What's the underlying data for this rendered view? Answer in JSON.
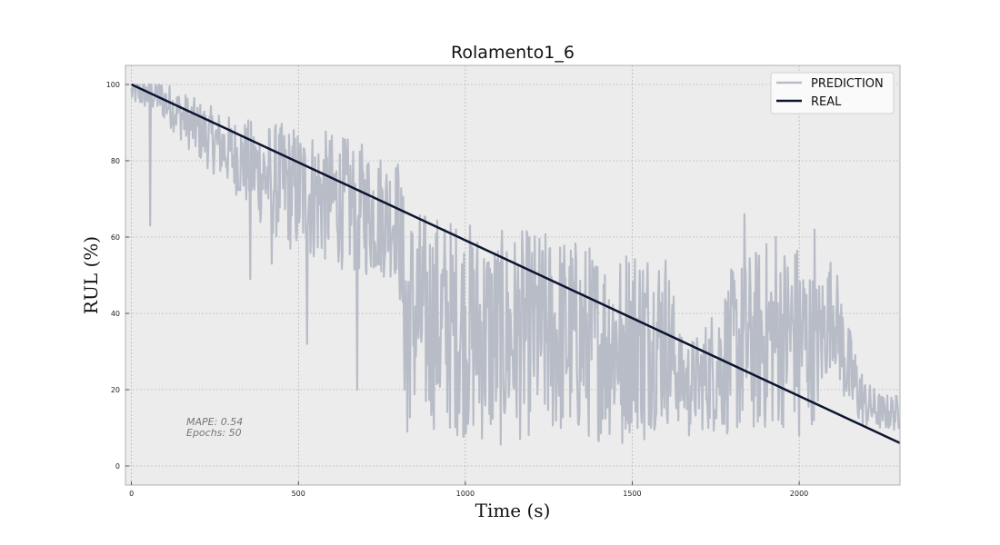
{
  "chart_data": {
    "type": "line",
    "title": "Rolamento1_6",
    "xlabel": "Time (s)",
    "ylabel": "RUL (%)",
    "xlim": [
      -18,
      2302
    ],
    "ylim": [
      -5,
      105
    ],
    "xticks": [
      0,
      500,
      1000,
      1500,
      2000
    ],
    "yticks": [
      0,
      20,
      40,
      60,
      80,
      100
    ],
    "grid": true,
    "legend_position": "top-right",
    "colors": {
      "background": "#ececec",
      "prediction": "#b7bcc7",
      "real": "#0c1530",
      "grid": "#a8a8a8"
    },
    "series": [
      {
        "name": "PREDICTION",
        "style": "noisy",
        "trend_x": [
          0,
          80,
          200,
          300,
          400,
          500,
          600,
          700,
          800,
          820,
          1000,
          1100,
          1200,
          1300,
          1400,
          1500,
          1600,
          1650,
          1700,
          1800,
          1900,
          2000,
          2050,
          2100,
          2150,
          2200,
          2250,
          2300
        ],
        "trend_y": [
          98,
          97,
          88,
          82,
          76,
          72,
          70,
          67,
          65,
          40,
          36,
          33,
          35,
          34,
          32,
          34,
          34,
          22,
          22,
          30,
          34,
          35,
          30,
          42,
          24,
          16,
          14,
          14
        ],
        "noise_amplitude": [
          2,
          3,
          5,
          6,
          9,
          11,
          11,
          11,
          10,
          18,
          18,
          18,
          17,
          17,
          16,
          16,
          15,
          7,
          8,
          14,
          16,
          15,
          12,
          9,
          8,
          4,
          3,
          3
        ],
        "spikes": [
          {
            "x": 55,
            "y": 63
          },
          {
            "x": 355,
            "y": 49
          },
          {
            "x": 420,
            "y": 53
          },
          {
            "x": 525,
            "y": 32
          },
          {
            "x": 675,
            "y": 20
          },
          {
            "x": 825,
            "y": 9
          },
          {
            "x": 1470,
            "y": 6
          },
          {
            "x": 1535,
            "y": 7
          },
          {
            "x": 1835,
            "y": 66
          },
          {
            "x": 1930,
            "y": 60
          },
          {
            "x": 2045,
            "y": 62
          },
          {
            "x": 2000,
            "y": 8
          },
          {
            "x": 1670,
            "y": 8
          }
        ]
      },
      {
        "name": "REAL",
        "x": [
          0,
          2302
        ],
        "y": [
          100,
          6
        ]
      }
    ],
    "annotations": [
      {
        "text": "MAPE: 0.54"
      },
      {
        "text": "Epochs: 50"
      }
    ]
  }
}
